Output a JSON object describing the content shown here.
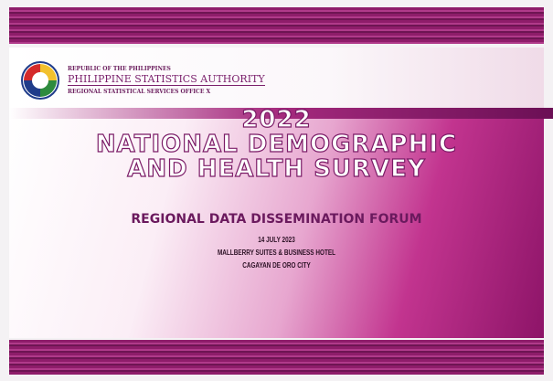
{
  "header": {
    "republic": "REPUBLIC OF THE PHILIPPINES",
    "agency": "PHILIPPINE STATISTICS AUTHORITY",
    "office": "REGIONAL STATISTICAL SERVICES OFFICE X"
  },
  "title": {
    "year": "2022",
    "line1": "NATIONAL DEMOGRAPHIC",
    "line2": "AND HEALTH SURVEY"
  },
  "event": {
    "name": "REGIONAL DATA DISSEMINATION FORUM",
    "date": "14 JULY 2023",
    "venue": "MALLBERRY SUITES & BUSINESS HOTEL",
    "city": "CAGAYAN DE ORO CITY"
  }
}
